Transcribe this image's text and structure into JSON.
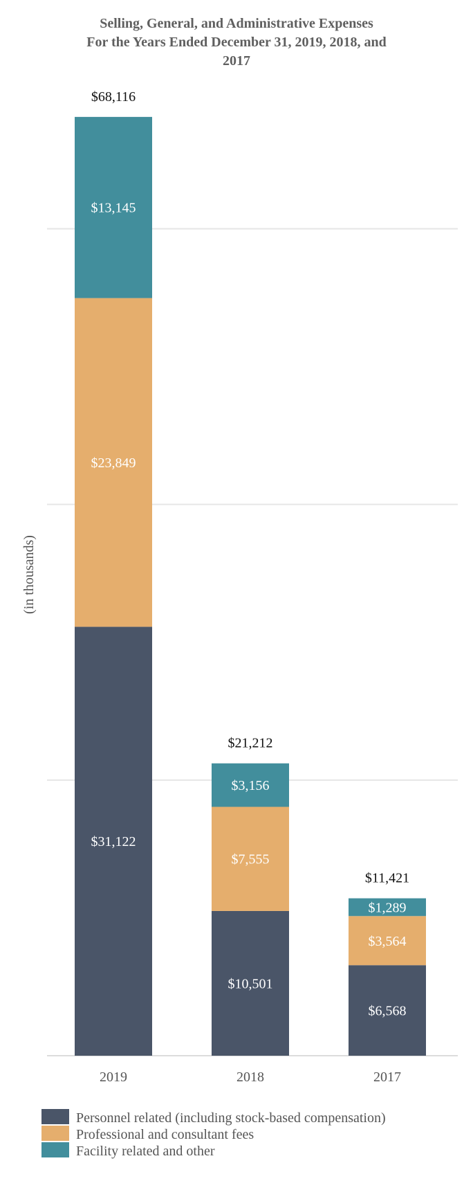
{
  "chart_data": {
    "type": "bar",
    "stacked": true,
    "title": "Selling, General, and Administrative Expenses For the Years Ended December 31, 2019, 2018, and 2017",
    "title_lines": [
      "Selling, General, and Administrative Expenses",
      "For the Years Ended December 31, 2019, 2018, and",
      "2017"
    ],
    "xlabel": "",
    "ylabel": "(in thousands)",
    "ylim": [
      0,
      72000
    ],
    "gridlines": [
      0,
      20000,
      40000,
      60000
    ],
    "categories": [
      "2019",
      "2018",
      "2017"
    ],
    "series": [
      {
        "name": "Personnel related (including stock-based compensation)",
        "color": "#4a5568",
        "values": [
          31122,
          10501,
          6568
        ],
        "labels": [
          "$31,122",
          "$10,501",
          "$6,568"
        ]
      },
      {
        "name": "Professional and consultant fees",
        "color": "#e5ae6d",
        "values": [
          23849,
          7555,
          3564
        ],
        "labels": [
          "$23,849",
          "$7,555",
          "$3,564"
        ]
      },
      {
        "name": "Facility related and other",
        "color": "#428e9c",
        "values": [
          13145,
          3156,
          1289
        ],
        "labels": [
          "$13,145",
          "$3,156",
          "$1,289"
        ]
      }
    ],
    "totals": [
      68116,
      21212,
      11421
    ],
    "total_labels": [
      "$68,116",
      "$21,212",
      "$11,421"
    ],
    "legend_position": "bottom-left"
  }
}
